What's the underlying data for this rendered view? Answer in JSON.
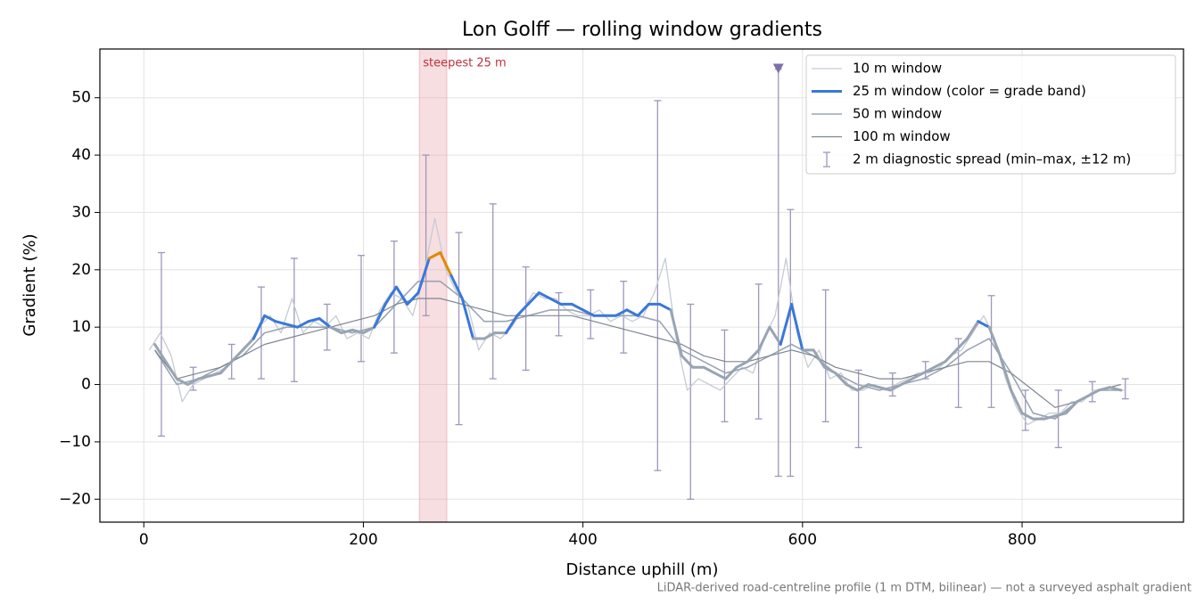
{
  "chart_data": {
    "type": "line",
    "title": "Lon Golff — rolling window gradients",
    "xlabel": "Distance uphill (m)",
    "ylabel": "Gradient (%)",
    "footnote": "LiDAR-derived road-centreline profile (1 m DTM, bilinear) — not a surveyed asphalt gradient",
    "xlim": [
      -40,
      947
    ],
    "ylim": [
      -24,
      58.5
    ],
    "xticks": [
      0,
      200,
      400,
      600,
      800
    ],
    "yticks": [
      {
        "value": -20,
        "label": "−20"
      },
      {
        "value": -10,
        "label": "−10"
      },
      0,
      10,
      20,
      30,
      40,
      50
    ],
    "grid": true,
    "legend": "upper right",
    "highlight": {
      "xlim": [
        251,
        276
      ],
      "label": "steepest 25 m",
      "color": "#e8a0a8"
    },
    "series": [
      {
        "name": "10 m window",
        "color": "#c5ccd5",
        "width": 1.3,
        "x": [
          5,
          15,
          25,
          35,
          45,
          55,
          65,
          75,
          85,
          95,
          105,
          115,
          125,
          135,
          145,
          155,
          165,
          175,
          185,
          195,
          205,
          215,
          225,
          235,
          245,
          255,
          265,
          275,
          285,
          295,
          305,
          315,
          325,
          335,
          345,
          355,
          365,
          375,
          385,
          395,
          405,
          415,
          425,
          435,
          445,
          455,
          465,
          475,
          485,
          495,
          505,
          515,
          525,
          535,
          545,
          555,
          565,
          575,
          585,
          595,
          605,
          615,
          625,
          635,
          645,
          655,
          665,
          675,
          685,
          695,
          705,
          715,
          725,
          735,
          745,
          755,
          765,
          775,
          785,
          795,
          805,
          815,
          825,
          835,
          845,
          855,
          865,
          875,
          885,
          895
        ],
        "values": [
          6,
          9,
          5,
          -3,
          0,
          1,
          2,
          3,
          5,
          7,
          10,
          12,
          9,
          15,
          9,
          11,
          10,
          12,
          8,
          9,
          8,
          13,
          16,
          15,
          12,
          19,
          29,
          20,
          16,
          14,
          6,
          9,
          8,
          10,
          13,
          16,
          15,
          15,
          13,
          12,
          12,
          13,
          11,
          12,
          11,
          12,
          16,
          22,
          8,
          -1,
          1,
          0,
          -1,
          1,
          3,
          2,
          8,
          12,
          22,
          9,
          3,
          6,
          1,
          2,
          -1,
          -1,
          0,
          -1,
          0,
          1,
          2,
          2,
          3,
          5,
          6,
          9,
          12,
          8,
          1,
          -4,
          -7,
          -6,
          -5,
          -5,
          -3,
          -3,
          -1,
          -1,
          -1,
          -1
        ]
      },
      {
        "name": "25 m window (color = grade band)",
        "color": "#3a78d8",
        "width": 3,
        "band_thresholds": [
          10,
          20
        ],
        "band_colors": [
          "#98a4b3",
          "#3a78d8",
          "#e08a00"
        ],
        "x": [
          10,
          20,
          30,
          40,
          50,
          60,
          70,
          80,
          90,
          100,
          110,
          120,
          130,
          140,
          150,
          160,
          170,
          180,
          190,
          200,
          210,
          220,
          230,
          240,
          250,
          260,
          270,
          280,
          290,
          300,
          310,
          320,
          330,
          340,
          350,
          360,
          370,
          380,
          390,
          400,
          410,
          420,
          430,
          440,
          450,
          460,
          470,
          480,
          490,
          500,
          510,
          520,
          530,
          540,
          550,
          560,
          570,
          580,
          590,
          600,
          610,
          620,
          630,
          640,
          650,
          660,
          670,
          680,
          690,
          700,
          710,
          720,
          730,
          740,
          750,
          760,
          770,
          780,
          790,
          800,
          810,
          820,
          830,
          840,
          850,
          860,
          870,
          880,
          890
        ],
        "values": [
          7,
          4,
          1,
          0,
          1,
          1.5,
          2,
          4,
          6,
          8,
          12,
          11,
          10.5,
          10,
          11,
          11.5,
          10,
          9,
          9.5,
          9,
          10,
          14,
          17,
          14,
          16,
          22,
          23,
          19,
          15,
          8,
          8,
          9,
          9,
          12,
          14,
          16,
          15,
          14,
          14,
          13,
          12,
          12,
          12,
          13,
          12,
          14,
          14,
          13,
          5,
          3,
          3,
          2,
          1,
          3,
          4,
          6,
          10,
          7,
          14,
          6,
          6,
          3,
          2,
          0,
          -1,
          0,
          -0.5,
          -1,
          0,
          1,
          2,
          3,
          4,
          6,
          8,
          11,
          10,
          5,
          -1,
          -5,
          -6,
          -6,
          -5.5,
          -5,
          -3,
          -2,
          -1,
          -0.5,
          -1
        ]
      },
      {
        "name": "50 m window",
        "color": "#9aa5b4",
        "width": 1.6,
        "x": [
          10,
          30,
          50,
          70,
          90,
          110,
          130,
          150,
          170,
          190,
          210,
          230,
          250,
          270,
          290,
          310,
          330,
          350,
          370,
          390,
          410,
          430,
          450,
          470,
          490,
          510,
          530,
          550,
          570,
          590,
          610,
          630,
          650,
          670,
          690,
          710,
          730,
          750,
          770,
          790,
          810,
          830,
          850,
          870,
          890
        ],
        "values": [
          6,
          0,
          1,
          3,
          5,
          9,
          10,
          10,
          10,
          9,
          10,
          14,
          18,
          18,
          15,
          11,
          11,
          12,
          13,
          13,
          12,
          12,
          12,
          11,
          6,
          4,
          2,
          3,
          5,
          7,
          5,
          2,
          0,
          -1,
          0,
          1,
          3,
          6,
          8,
          2,
          -5,
          -6,
          -3,
          -1,
          -1
        ]
      },
      {
        "name": "100 m window",
        "color": "#7d8591",
        "width": 1.2,
        "x": [
          10,
          30,
          50,
          70,
          90,
          110,
          130,
          150,
          170,
          190,
          210,
          230,
          250,
          270,
          290,
          310,
          330,
          350,
          370,
          390,
          410,
          430,
          450,
          470,
          490,
          510,
          530,
          550,
          570,
          590,
          610,
          630,
          650,
          670,
          690,
          710,
          730,
          750,
          770,
          790,
          810,
          830,
          850,
          870,
          890
        ],
        "values": [
          6,
          1,
          2,
          3,
          5,
          7,
          8,
          9,
          10,
          11,
          12,
          14,
          15,
          15,
          14,
          13,
          12,
          12,
          12,
          12,
          11,
          10,
          9,
          8,
          7,
          5,
          4,
          4,
          5,
          6,
          5,
          3,
          2,
          1,
          1,
          2,
          3,
          4,
          4,
          2,
          -1,
          -4,
          -3,
          -1,
          0
        ]
      }
    ],
    "spread": {
      "name": "2 m diagnostic spread (min–max, ±12 m)",
      "color": "#9e97bb",
      "x": [
        16,
        45,
        80,
        107,
        137,
        167,
        198,
        228,
        257,
        287,
        318,
        348,
        378,
        407,
        437,
        468,
        498,
        529,
        560,
        578,
        589,
        621,
        651,
        682,
        712,
        742,
        772,
        803,
        833,
        864,
        894
      ],
      "min": [
        -9,
        -1,
        1,
        1,
        0.5,
        6,
        4,
        5.5,
        12,
        -7,
        1,
        2.5,
        8.5,
        8,
        5.5,
        -15,
        -20,
        -6.5,
        -6,
        -16,
        -16,
        -6.5,
        -11,
        -2,
        1,
        -4,
        -4,
        -8,
        -11,
        -3,
        -2.5
      ],
      "max": [
        23,
        3,
        7,
        17,
        22,
        14,
        22.5,
        25,
        40,
        26.5,
        31.5,
        20.5,
        16,
        16.5,
        18,
        49.5,
        14,
        9.5,
        17.5,
        55,
        30.5,
        16.5,
        2.5,
        2,
        4,
        8,
        15.5,
        -1,
        -1,
        0.5,
        1
      ]
    },
    "peak": {
      "x": 578,
      "y": 55,
      "color": "#7d6fa8"
    }
  }
}
